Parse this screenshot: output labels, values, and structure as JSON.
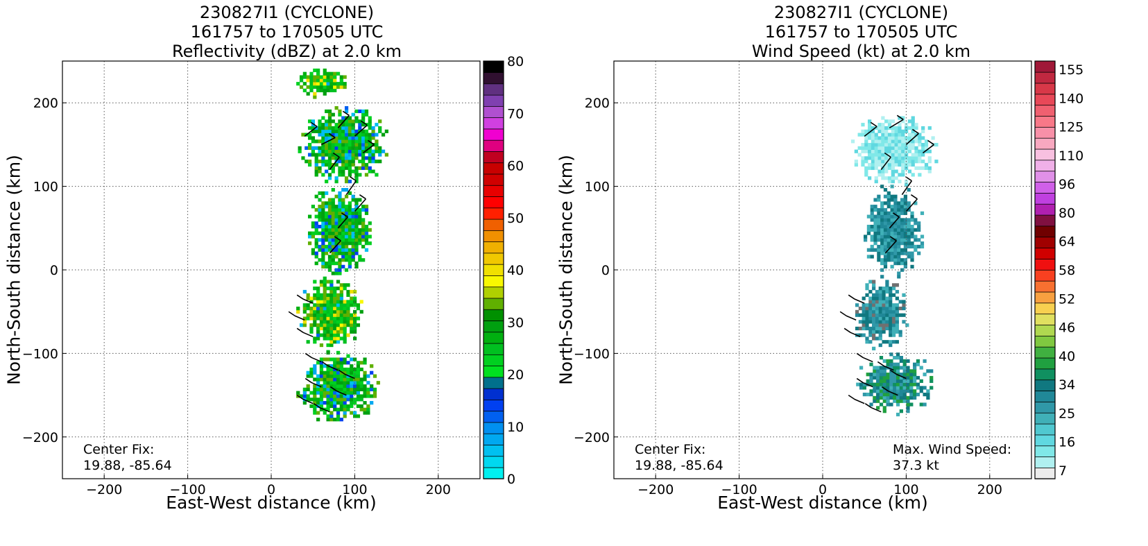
{
  "chart_data": [
    {
      "type": "heatmap",
      "title_lines": [
        "230827I1 (CYCLONE)",
        "161757 to 170505 UTC",
        "Reflectivity (dBZ) at 2.0 km"
      ],
      "xlabel": "East-West distance (km)",
      "ylabel": "North-South distance (km)",
      "xlim": [
        -250,
        250
      ],
      "ylim": [
        -250,
        250
      ],
      "xticks": [
        -200,
        -100,
        0,
        100,
        200
      ],
      "yticks": [
        -200,
        -100,
        0,
        100,
        200
      ],
      "xtick_labels": [
        "−200",
        "−100",
        "0",
        "100",
        "200"
      ],
      "ytick_labels": [
        "−200",
        "−100",
        "0",
        "100",
        "200"
      ],
      "grid": true,
      "annotation": {
        "label": "Center Fix:",
        "value": "19.88, -85.64"
      },
      "colorbar": {
        "range": [
          0,
          80
        ],
        "ticks": [
          0,
          10,
          20,
          30,
          40,
          50,
          60,
          70,
          80
        ],
        "tick_labels": [
          "0",
          "10",
          "20",
          "30",
          "40",
          "50",
          "60",
          "70",
          "80"
        ],
        "colors": [
          "#00f0f0",
          "#00d8f0",
          "#00c0f0",
          "#00a8f0",
          "#0090f0",
          "#0060f0",
          "#0040f0",
          "#0030d0",
          "#00708c",
          "#00e020",
          "#00d020",
          "#00c020",
          "#00b010",
          "#00a010",
          "#009000",
          "#60b000",
          "#b0d000",
          "#f8f800",
          "#f0e000",
          "#f0c800",
          "#f0b000",
          "#f09000",
          "#f06000",
          "#ff2000",
          "#ff0000",
          "#e80000",
          "#d00000",
          "#c80000",
          "#c00020",
          "#e00080",
          "#f000d0",
          "#d040e0",
          "#b050d0",
          "#8040b0",
          "#603080",
          "#301030",
          "#000000"
        ]
      },
      "scan_regions": [
        {
          "name": "north-cluster",
          "x_range": [
            32,
            140
          ],
          "y_range": [
            100,
            196
          ],
          "dominant": "green",
          "embedded": "blue/yellow"
        },
        {
          "name": "north-outlier",
          "x_range": [
            30,
            90
          ],
          "y_range": [
            205,
            240
          ],
          "dominant": "yellow/green/cyan"
        },
        {
          "name": "central-band",
          "x_range": [
            40,
            120
          ],
          "y_range": [
            -10,
            100
          ],
          "dominant": "green/blue"
        },
        {
          "name": "south-band",
          "x_range": [
            30,
            110
          ],
          "y_range": [
            -100,
            -10
          ],
          "dominant": "green/yellow/blue"
        },
        {
          "name": "southern-cluster",
          "x_range": [
            30,
            130
          ],
          "y_range": [
            -185,
            -100
          ],
          "dominant": "green"
        }
      ]
    },
    {
      "type": "heatmap",
      "title_lines": [
        "230827I1 (CYCLONE)",
        "161757 to 170505 UTC",
        "Wind Speed (kt) at 2.0 km"
      ],
      "xlabel": "East-West distance (km)",
      "ylabel": "North-South distance (km)",
      "xlim": [
        -250,
        250
      ],
      "ylim": [
        -250,
        250
      ],
      "xticks": [
        -200,
        -100,
        0,
        100,
        200
      ],
      "yticks": [
        -200,
        -100,
        0,
        100,
        200
      ],
      "xtick_labels": [
        "−200",
        "−100",
        "0",
        "100",
        "200"
      ],
      "ytick_labels": [
        "−200",
        "−100",
        "0",
        "100",
        "200"
      ],
      "grid": true,
      "annotation": {
        "label": "Center Fix:",
        "value": "19.88, -85.64"
      },
      "max_wind": {
        "label": "Max. Wind Speed:",
        "value": "37.3 kt"
      },
      "colorbar": {
        "ticks": [
          "7",
          "16",
          "25",
          "34",
          "40",
          "46",
          "52",
          "58",
          "64",
          "80",
          "96",
          "110",
          "125",
          "140",
          "155"
        ],
        "colors": [
          "#ececec",
          "#b0f0f0",
          "#80e8e8",
          "#60d8e0",
          "#50c8d0",
          "#40b0b8",
          "#3098a8",
          "#208898",
          "#107880",
          "#109060",
          "#20a040",
          "#40b040",
          "#80c840",
          "#b0d850",
          "#e0e060",
          "#f8d050",
          "#f8a040",
          "#f87030",
          "#f84020",
          "#f01010",
          "#d00000",
          "#a00000",
          "#700000",
          "#801040",
          "#b020b0",
          "#c040e0",
          "#d060e8",
          "#e090e8",
          "#f0b0e8",
          "#f8c0e0",
          "#f8a8c0",
          "#f890a8",
          "#f87888",
          "#f06070",
          "#e84858",
          "#d83848",
          "#c02840",
          "#a01838"
        ]
      },
      "scan_regions": [
        {
          "name": "north-cluster",
          "x_range": [
            30,
            135
          ],
          "y_range": [
            100,
            185
          ],
          "dominant": "light-cyan"
        },
        {
          "name": "central-band",
          "x_range": [
            45,
            120
          ],
          "y_range": [
            -10,
            100
          ],
          "dominant": "cyan/teal"
        },
        {
          "name": "south-band",
          "x_range": [
            35,
            100
          ],
          "y_range": [
            -100,
            -10
          ],
          "dominant": "teal",
          "embedded": "grey"
        },
        {
          "name": "southern-cluster",
          "x_range": [
            40,
            130
          ],
          "y_range": [
            -175,
            -100
          ],
          "dominant": "teal/green"
        }
      ]
    }
  ]
}
